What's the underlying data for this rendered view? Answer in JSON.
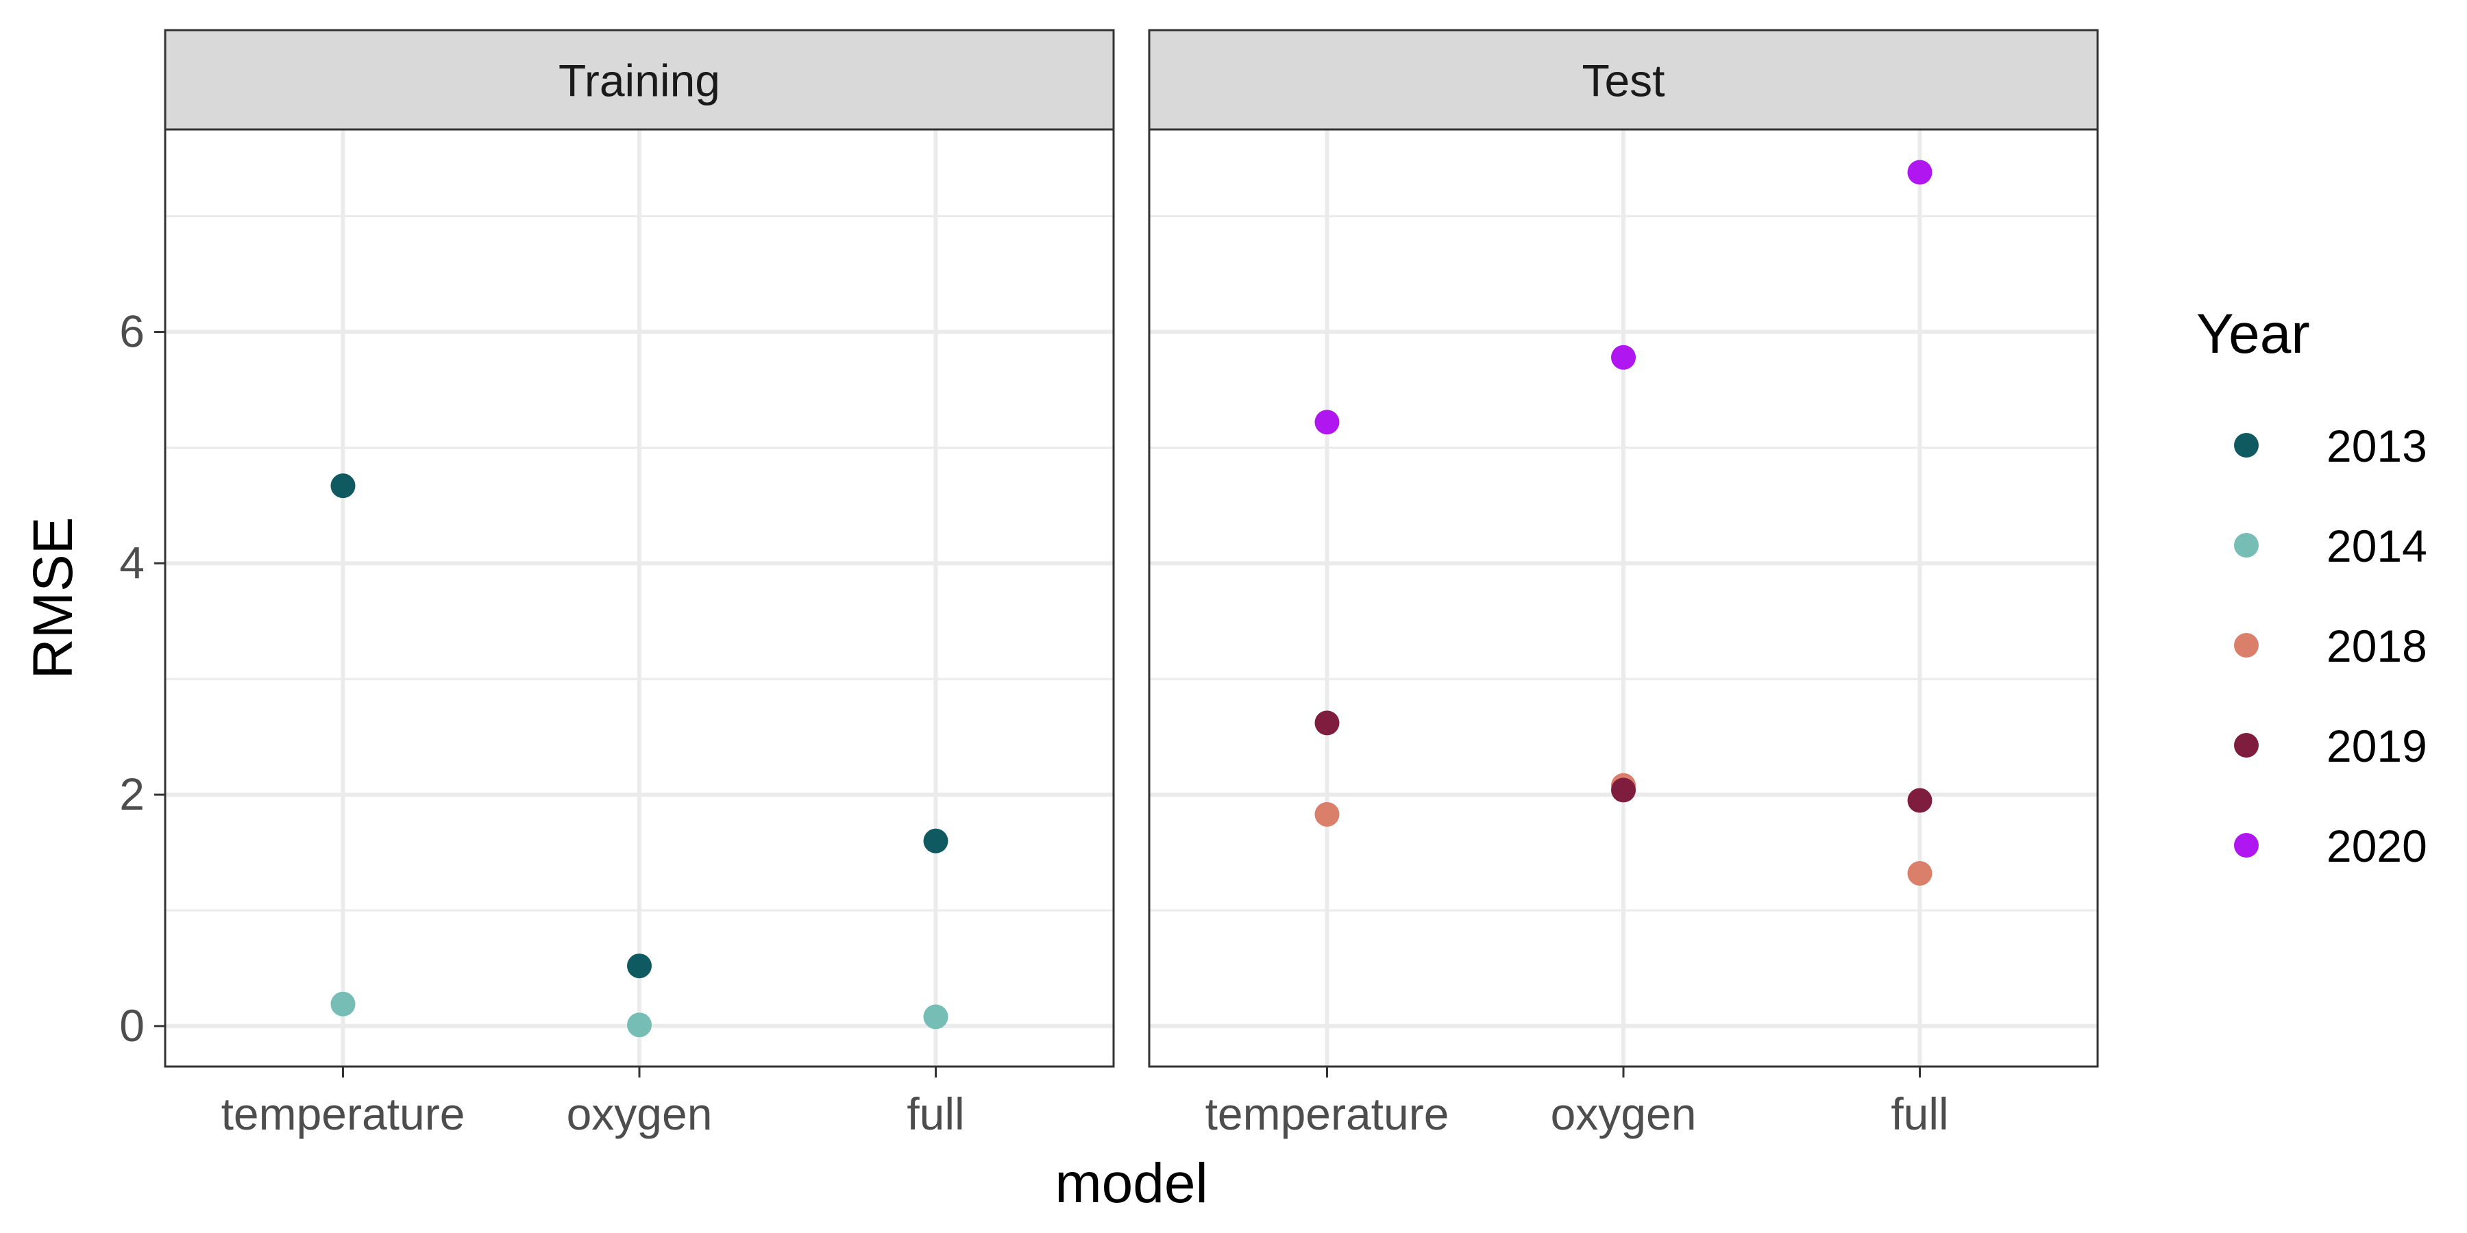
{
  "chart_data": {
    "type": "scatter",
    "xlabel": "model",
    "ylabel": "RMSE",
    "categories": [
      "temperature",
      "oxygen",
      "full"
    ],
    "ylim": [
      -0.35,
      7.75
    ],
    "yticks": [
      0,
      2,
      4,
      6
    ],
    "grid": true,
    "legend": {
      "title": "Year",
      "placement": "right",
      "entries": [
        {
          "name": "2013",
          "color": "#0F5A60"
        },
        {
          "name": "2014",
          "color": "#76BDB5"
        },
        {
          "name": "2018",
          "color": "#DA806A"
        },
        {
          "name": "2019",
          "color": "#7F1D3F"
        },
        {
          "name": "2020",
          "color": "#B016F0"
        }
      ]
    },
    "panels": [
      {
        "title": "Training",
        "series": [
          {
            "name": "2013",
            "values": [
              4.67,
              0.52,
              1.6
            ]
          },
          {
            "name": "2014",
            "values": [
              0.19,
              0.01,
              0.08
            ]
          }
        ]
      },
      {
        "title": "Test",
        "series": [
          {
            "name": "2018",
            "values": [
              1.83,
              2.08,
              1.32
            ]
          },
          {
            "name": "2019",
            "values": [
              2.62,
              2.04,
              1.95
            ]
          },
          {
            "name": "2020",
            "values": [
              5.22,
              5.78,
              7.38
            ]
          }
        ]
      }
    ]
  }
}
